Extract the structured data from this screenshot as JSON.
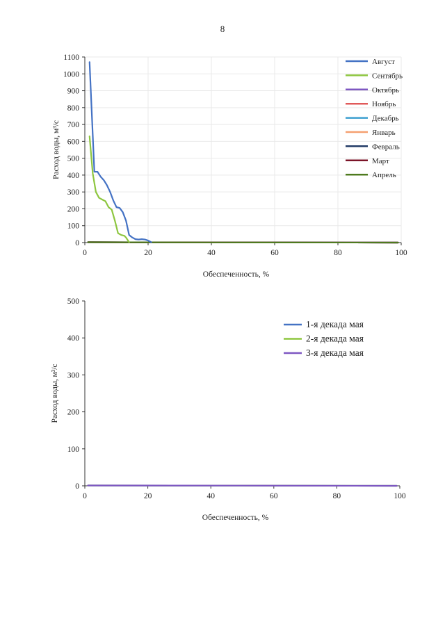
{
  "page": {
    "number": "8"
  },
  "colors": {
    "Август": "#4472C4",
    "Сентябрь": "#8DC63F",
    "Октябрь": "#7E57C2",
    "Ноябрь": "#E05A5A",
    "Декабрь": "#3FA0D0",
    "Январь": "#F5A070",
    "Февраль": "#1F3864",
    "Март": "#7B1428",
    "Апрель": "#4E7A1E",
    "1-я декада мая": "#4472C4",
    "2-я декада мая": "#8DC63F",
    "3-я декада мая": "#7E57C2",
    "grid": "#e9e9e9",
    "axis": "#333333"
  },
  "chart_data": [
    {
      "type": "line",
      "title": "",
      "xlabel": "Обеспеченность, %",
      "ylabel": "Расход воды, м³/с",
      "xlim": [
        0,
        100
      ],
      "ylim": [
        0,
        1100
      ],
      "xticks": [
        0,
        20,
        40,
        60,
        80,
        100
      ],
      "yticks": [
        0,
        100,
        200,
        300,
        400,
        500,
        600,
        700,
        800,
        900,
        1000,
        1100
      ],
      "grid": true,
      "legend_position": "right",
      "series": [
        {
          "name": "Август",
          "x": [
            1.5,
            3,
            4,
            5,
            6,
            7,
            8,
            9,
            10,
            11,
            12,
            13,
            14,
            15,
            16,
            17,
            18,
            19,
            20,
            21
          ],
          "y": [
            1070,
            420,
            420,
            390,
            370,
            340,
            300,
            250,
            210,
            205,
            180,
            130,
            45,
            30,
            20,
            18,
            20,
            18,
            12,
            2
          ]
        },
        {
          "name": "Сентябрь",
          "x": [
            1.5,
            2.5,
            3.5,
            4.5,
            5.5,
            6.5,
            7.5,
            8.5,
            9.5,
            10.5,
            11.5,
            12.5,
            13,
            14
          ],
          "y": [
            630,
            410,
            300,
            265,
            255,
            245,
            210,
            195,
            130,
            55,
            45,
            40,
            30,
            2
          ]
        },
        {
          "name": "Октябрь",
          "x": [
            1,
            40,
            99
          ],
          "y": [
            2,
            1,
            0
          ]
        },
        {
          "name": "Ноябрь",
          "x": [
            1,
            40,
            99
          ],
          "y": [
            2,
            1,
            0
          ]
        },
        {
          "name": "Декабрь",
          "x": [
            1,
            40,
            99
          ],
          "y": [
            2,
            1,
            0
          ]
        },
        {
          "name": "Январь",
          "x": [
            1,
            40,
            99
          ],
          "y": [
            2,
            1,
            0
          ]
        },
        {
          "name": "Февраль",
          "x": [
            1,
            40,
            99
          ],
          "y": [
            2,
            1,
            0
          ]
        },
        {
          "name": "Март",
          "x": [
            1,
            40,
            99
          ],
          "y": [
            2,
            1,
            0
          ]
        },
        {
          "name": "Апрель",
          "x": [
            1,
            40,
            99
          ],
          "y": [
            2,
            1,
            0
          ]
        }
      ]
    },
    {
      "type": "line",
      "title": "",
      "xlabel": "Обеспеченность, %",
      "ylabel": "Расход воды, м³/с",
      "xlim": [
        0,
        100
      ],
      "ylim": [
        0,
        500
      ],
      "xticks": [
        0,
        20,
        40,
        60,
        80,
        100
      ],
      "yticks": [
        0,
        100,
        200,
        300,
        400,
        500
      ],
      "grid": false,
      "legend_position": "top-right",
      "series": [
        {
          "name": "1-я декада мая",
          "x": [
            1,
            50,
            99
          ],
          "y": [
            1,
            0.5,
            0
          ]
        },
        {
          "name": "2-я декада мая",
          "x": [
            1,
            50,
            99
          ],
          "y": [
            1,
            0.5,
            0
          ]
        },
        {
          "name": "3-я декада мая",
          "x": [
            1,
            50,
            99
          ],
          "y": [
            1,
            0.5,
            0
          ]
        }
      ]
    }
  ]
}
